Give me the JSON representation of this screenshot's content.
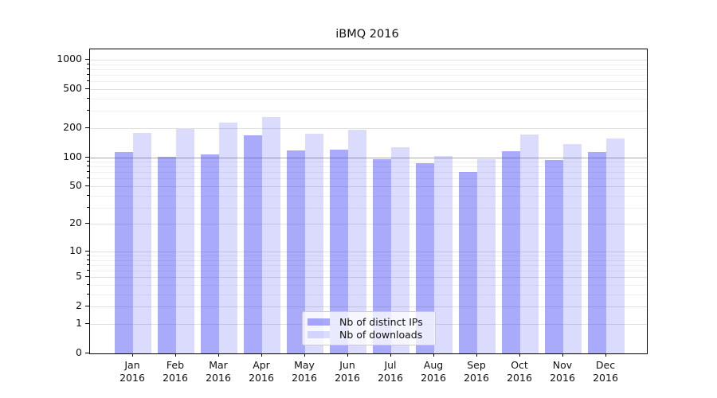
{
  "title": "iBMQ 2016",
  "colors": {
    "bar_dark": "rgba(66,66,244,0.45)",
    "bar_light": "rgba(66,66,244,0.19)",
    "grid_minor": "#efefef",
    "grid_major": "#e0e0e0",
    "ref_line_100": "#a8a8a8",
    "spine": "#000000",
    "text": "#111111",
    "legend_bg": "rgba(255,255,255,0.75)",
    "legend_border": "#cccccc"
  },
  "chart_data": {
    "type": "bar",
    "title": "iBMQ 2016",
    "categories": [
      {
        "month": "Jan",
        "year": "2016"
      },
      {
        "month": "Feb",
        "year": "2016"
      },
      {
        "month": "Mar",
        "year": "2016"
      },
      {
        "month": "Apr",
        "year": "2016"
      },
      {
        "month": "May",
        "year": "2016"
      },
      {
        "month": "Jun",
        "year": "2016"
      },
      {
        "month": "Jul",
        "year": "2016"
      },
      {
        "month": "Aug",
        "year": "2016"
      },
      {
        "month": "Sep",
        "year": "2016"
      },
      {
        "month": "Oct",
        "year": "2016"
      },
      {
        "month": "Nov",
        "year": "2016"
      },
      {
        "month": "Dec",
        "year": "2016"
      }
    ],
    "series": [
      {
        "name": "Nb of distinct IPs",
        "values": [
          114,
          101,
          107,
          167,
          117,
          120,
          95,
          86,
          70,
          116,
          93,
          114
        ]
      },
      {
        "name": "Nb of downloads",
        "values": [
          178,
          195,
          228,
          258,
          176,
          191,
          127,
          103,
          96,
          170,
          136,
          156
        ]
      }
    ],
    "xlabel": "",
    "ylabel": "",
    "yscale": "log-like: position proportional to log10(value+1)",
    "y_ticks": [
      0,
      1,
      2,
      5,
      10,
      20,
      50,
      100,
      200,
      500,
      1000
    ],
    "y_tick_labels": [
      "0",
      "1",
      "2",
      "5",
      "10",
      "20",
      "50",
      "100",
      "200",
      "500",
      "1000"
    ],
    "ylim": [
      0,
      1300
    ],
    "grid": true,
    "reference_gridline": 100,
    "legend_position": "lower center"
  },
  "legend": {
    "items": [
      {
        "label": "Nb of distinct IPs",
        "swatch": "dark"
      },
      {
        "label": "Nb of downloads",
        "swatch": "light"
      }
    ]
  }
}
